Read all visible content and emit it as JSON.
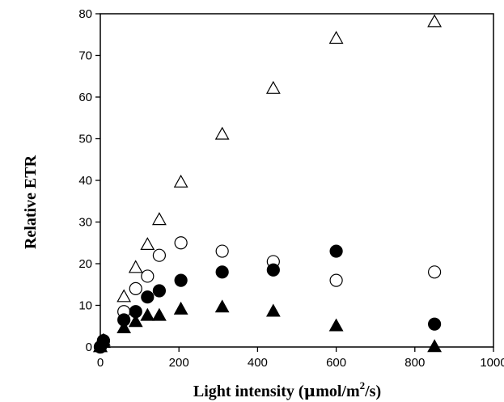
{
  "chart_data": {
    "type": "scatter",
    "title": "",
    "xlabel": "Light intensity (μmol/m²/s)",
    "xlabel_parts": {
      "before": "Light intensity (",
      "mu": "μ",
      "middle": "mol/m",
      "sup": "2",
      "after": "/s)"
    },
    "ylabel": "Relative ETR",
    "xlim": [
      0,
      1000
    ],
    "ylim": [
      0,
      80
    ],
    "xticks": [
      0,
      200,
      400,
      600,
      800,
      1000
    ],
    "yticks": [
      0,
      10,
      20,
      30,
      40,
      50,
      60,
      70,
      80
    ],
    "grid": false,
    "legend": "none",
    "colors": {
      "axis": "#000000",
      "marker": "#000000",
      "background": "#ffffff"
    },
    "series": [
      {
        "marker": "open-triangle",
        "points": [
          {
            "x": 0,
            "y": 0
          },
          {
            "x": 8,
            "y": 1.5
          },
          {
            "x": 60,
            "y": 12
          },
          {
            "x": 90,
            "y": 19
          },
          {
            "x": 120,
            "y": 24.5
          },
          {
            "x": 150,
            "y": 30.5
          },
          {
            "x": 205,
            "y": 39.5
          },
          {
            "x": 310,
            "y": 51
          },
          {
            "x": 440,
            "y": 62
          },
          {
            "x": 600,
            "y": 74
          },
          {
            "x": 850,
            "y": 78
          }
        ]
      },
      {
        "marker": "open-circle",
        "points": [
          {
            "x": 0,
            "y": 0
          },
          {
            "x": 8,
            "y": 1.5
          },
          {
            "x": 60,
            "y": 8.5
          },
          {
            "x": 90,
            "y": 14
          },
          {
            "x": 120,
            "y": 17
          },
          {
            "x": 150,
            "y": 22
          },
          {
            "x": 205,
            "y": 25
          },
          {
            "x": 310,
            "y": 23
          },
          {
            "x": 440,
            "y": 20.5
          },
          {
            "x": 600,
            "y": 16
          },
          {
            "x": 850,
            "y": 18
          }
        ]
      },
      {
        "marker": "filled-circle",
        "points": [
          {
            "x": 0,
            "y": 0
          },
          {
            "x": 8,
            "y": 1.5
          },
          {
            "x": 60,
            "y": 6.5
          },
          {
            "x": 90,
            "y": 8.5
          },
          {
            "x": 120,
            "y": 12
          },
          {
            "x": 150,
            "y": 13.5
          },
          {
            "x": 205,
            "y": 16
          },
          {
            "x": 310,
            "y": 18
          },
          {
            "x": 440,
            "y": 18.5
          },
          {
            "x": 600,
            "y": 23
          },
          {
            "x": 850,
            "y": 5.5
          }
        ]
      },
      {
        "marker": "filled-triangle",
        "points": [
          {
            "x": 0,
            "y": 0
          },
          {
            "x": 8,
            "y": 1
          },
          {
            "x": 60,
            "y": 4.5
          },
          {
            "x": 90,
            "y": 6
          },
          {
            "x": 120,
            "y": 7.5
          },
          {
            "x": 150,
            "y": 7.5
          },
          {
            "x": 205,
            "y": 9
          },
          {
            "x": 310,
            "y": 9.5
          },
          {
            "x": 440,
            "y": 8.5
          },
          {
            "x": 600,
            "y": 5
          },
          {
            "x": 850,
            "y": 0
          }
        ]
      }
    ]
  }
}
